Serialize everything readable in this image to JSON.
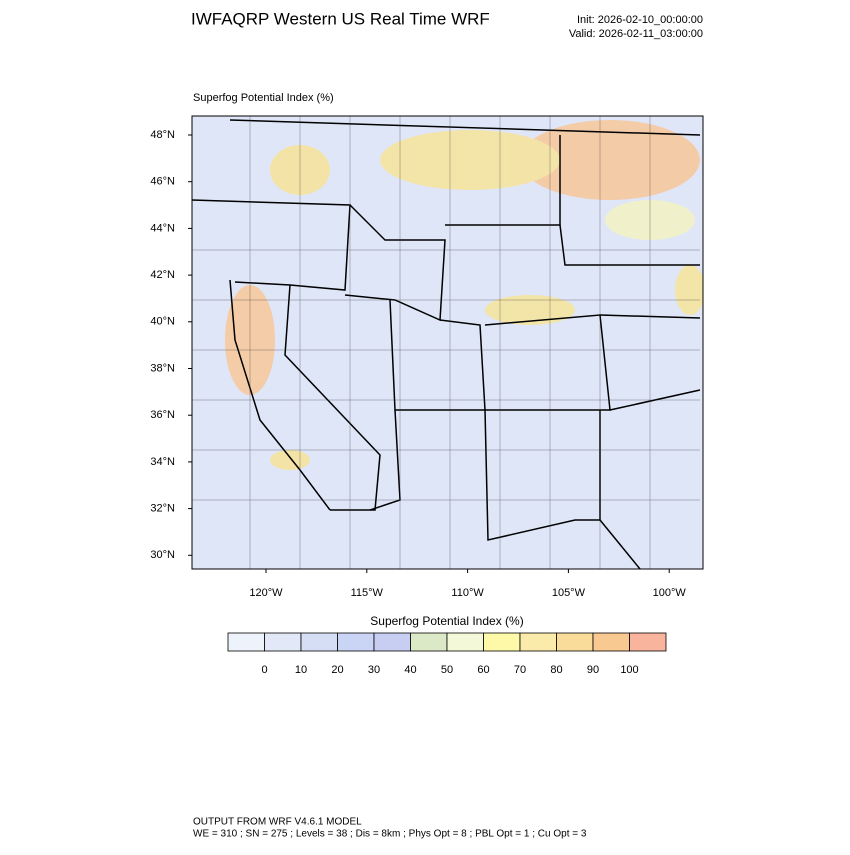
{
  "header": {
    "title": "IWFAQRP Western US Real Time WRF",
    "init": "Init: 2026-02-10_00:00:00",
    "valid": "Valid: 2026-02-11_03:00:00"
  },
  "map": {
    "title": "Superfog Potential Index   (%)",
    "lat_labels": [
      "48°N",
      "46°N",
      "44°N",
      "42°N",
      "40°N",
      "38°N",
      "36°N",
      "34°N",
      "32°N",
      "30°N"
    ],
    "lon_labels": [
      "120°W",
      "115°W",
      "110°W",
      "105°W",
      "100°W"
    ]
  },
  "colorbar": {
    "title": "Superfog Potential Index  (%)",
    "levels": [
      0,
      10,
      20,
      30,
      40,
      50,
      60,
      70,
      80,
      90,
      100
    ],
    "colors": [
      "#eef2fa",
      "#e2e8f8",
      "#d6def6",
      "#cad4f4",
      "#c8cef2",
      "#dbe9c7",
      "#f2f8d8",
      "#fdf9a8",
      "#fbebaa",
      "#f9dc9a",
      "#f9c992",
      "#f9b49e"
    ]
  },
  "footer": {
    "line1": "OUTPUT FROM WRF V4.6.1 MODEL",
    "line2": "WE = 310 ; SN = 275 ; Levels = 38 ; Dis = 8km ; Phys Opt = 8 ; PBL Opt = 1 ; Cu Opt = 3"
  }
}
